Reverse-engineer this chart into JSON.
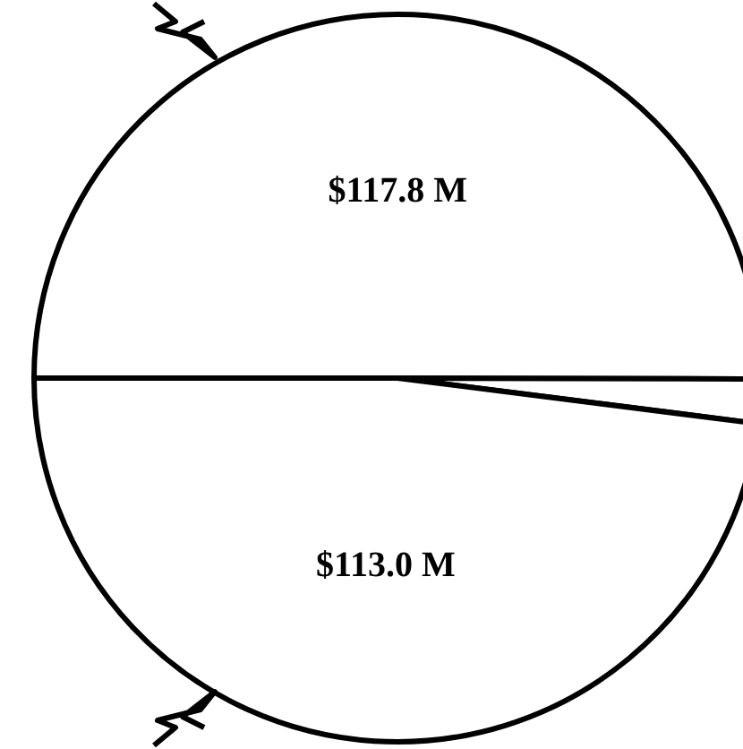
{
  "chart_data": {
    "type": "pie",
    "categories": [
      null,
      null,
      null
    ],
    "values": [
      117.8,
      4.6,
      113.0
    ],
    "value_labels": [
      "$117.8 M",
      null,
      "$113.0 M"
    ],
    "colors": [
      "#ffffff",
      "#ffffff",
      "#ffffff"
    ]
  }
}
